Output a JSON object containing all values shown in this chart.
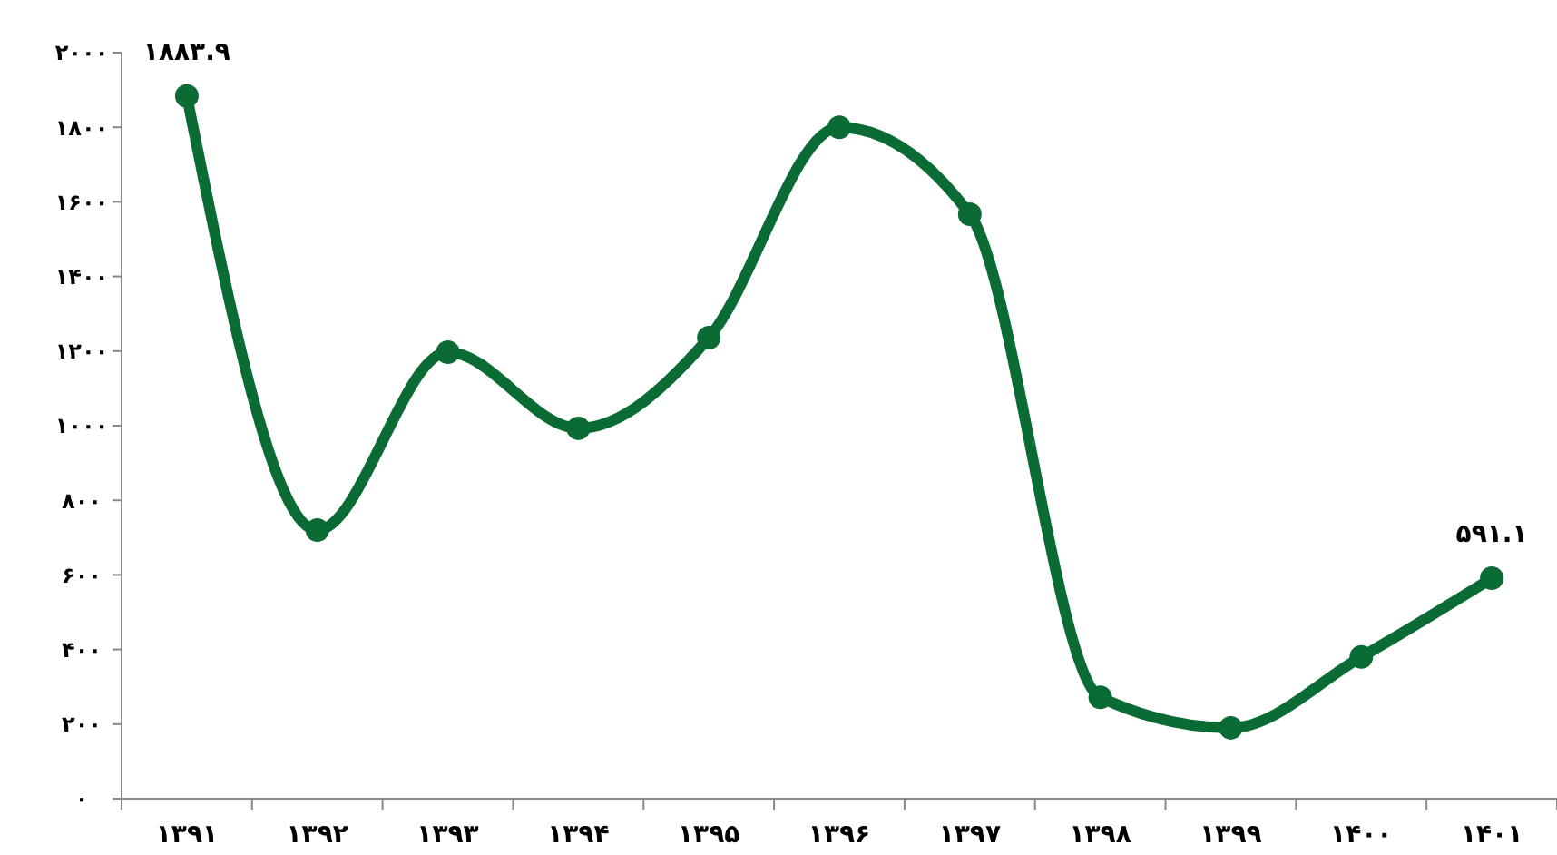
{
  "chart_data": {
    "type": "line",
    "categories": [
      "۱۳۹۱",
      "۱۳۹۲",
      "۱۳۹۳",
      "۱۳۹۴",
      "۱۳۹۵",
      "۱۳۹۶",
      "۱۳۹۷",
      "۱۳۹۸",
      "۱۳۹۹",
      "۱۴۰۰",
      "۱۴۰۱"
    ],
    "series": [
      {
        "color": "#0b6b35",
        "values": [
          1883.9,
          720,
          1197,
          993,
          1236,
          1800,
          1567,
          272,
          190,
          380,
          591.1
        ],
        "value_labels": [
          "۱۸۸۳.۹",
          null,
          null,
          null,
          null,
          null,
          null,
          null,
          null,
          null,
          "۵۹۱.۱"
        ]
      }
    ],
    "ylim": [
      0,
      2000
    ],
    "yticks": [
      {
        "value": 0,
        "label": "۰"
      },
      {
        "value": 200,
        "label": "۲۰۰"
      },
      {
        "value": 400,
        "label": "۴۰۰"
      },
      {
        "value": 600,
        "label": "۶۰۰"
      },
      {
        "value": 800,
        "label": "۸۰۰"
      },
      {
        "value": 1000,
        "label": "۱۰۰۰"
      },
      {
        "value": 1200,
        "label": "۱۲۰۰"
      },
      {
        "value": 1400,
        "label": "۱۴۰۰"
      },
      {
        "value": 1600,
        "label": "۱۶۰۰"
      },
      {
        "value": 1800,
        "label": "۱۸۰۰"
      },
      {
        "value": 2000,
        "label": "۲۰۰۰"
      }
    ],
    "marker": "circle",
    "line_style": "solid"
  }
}
